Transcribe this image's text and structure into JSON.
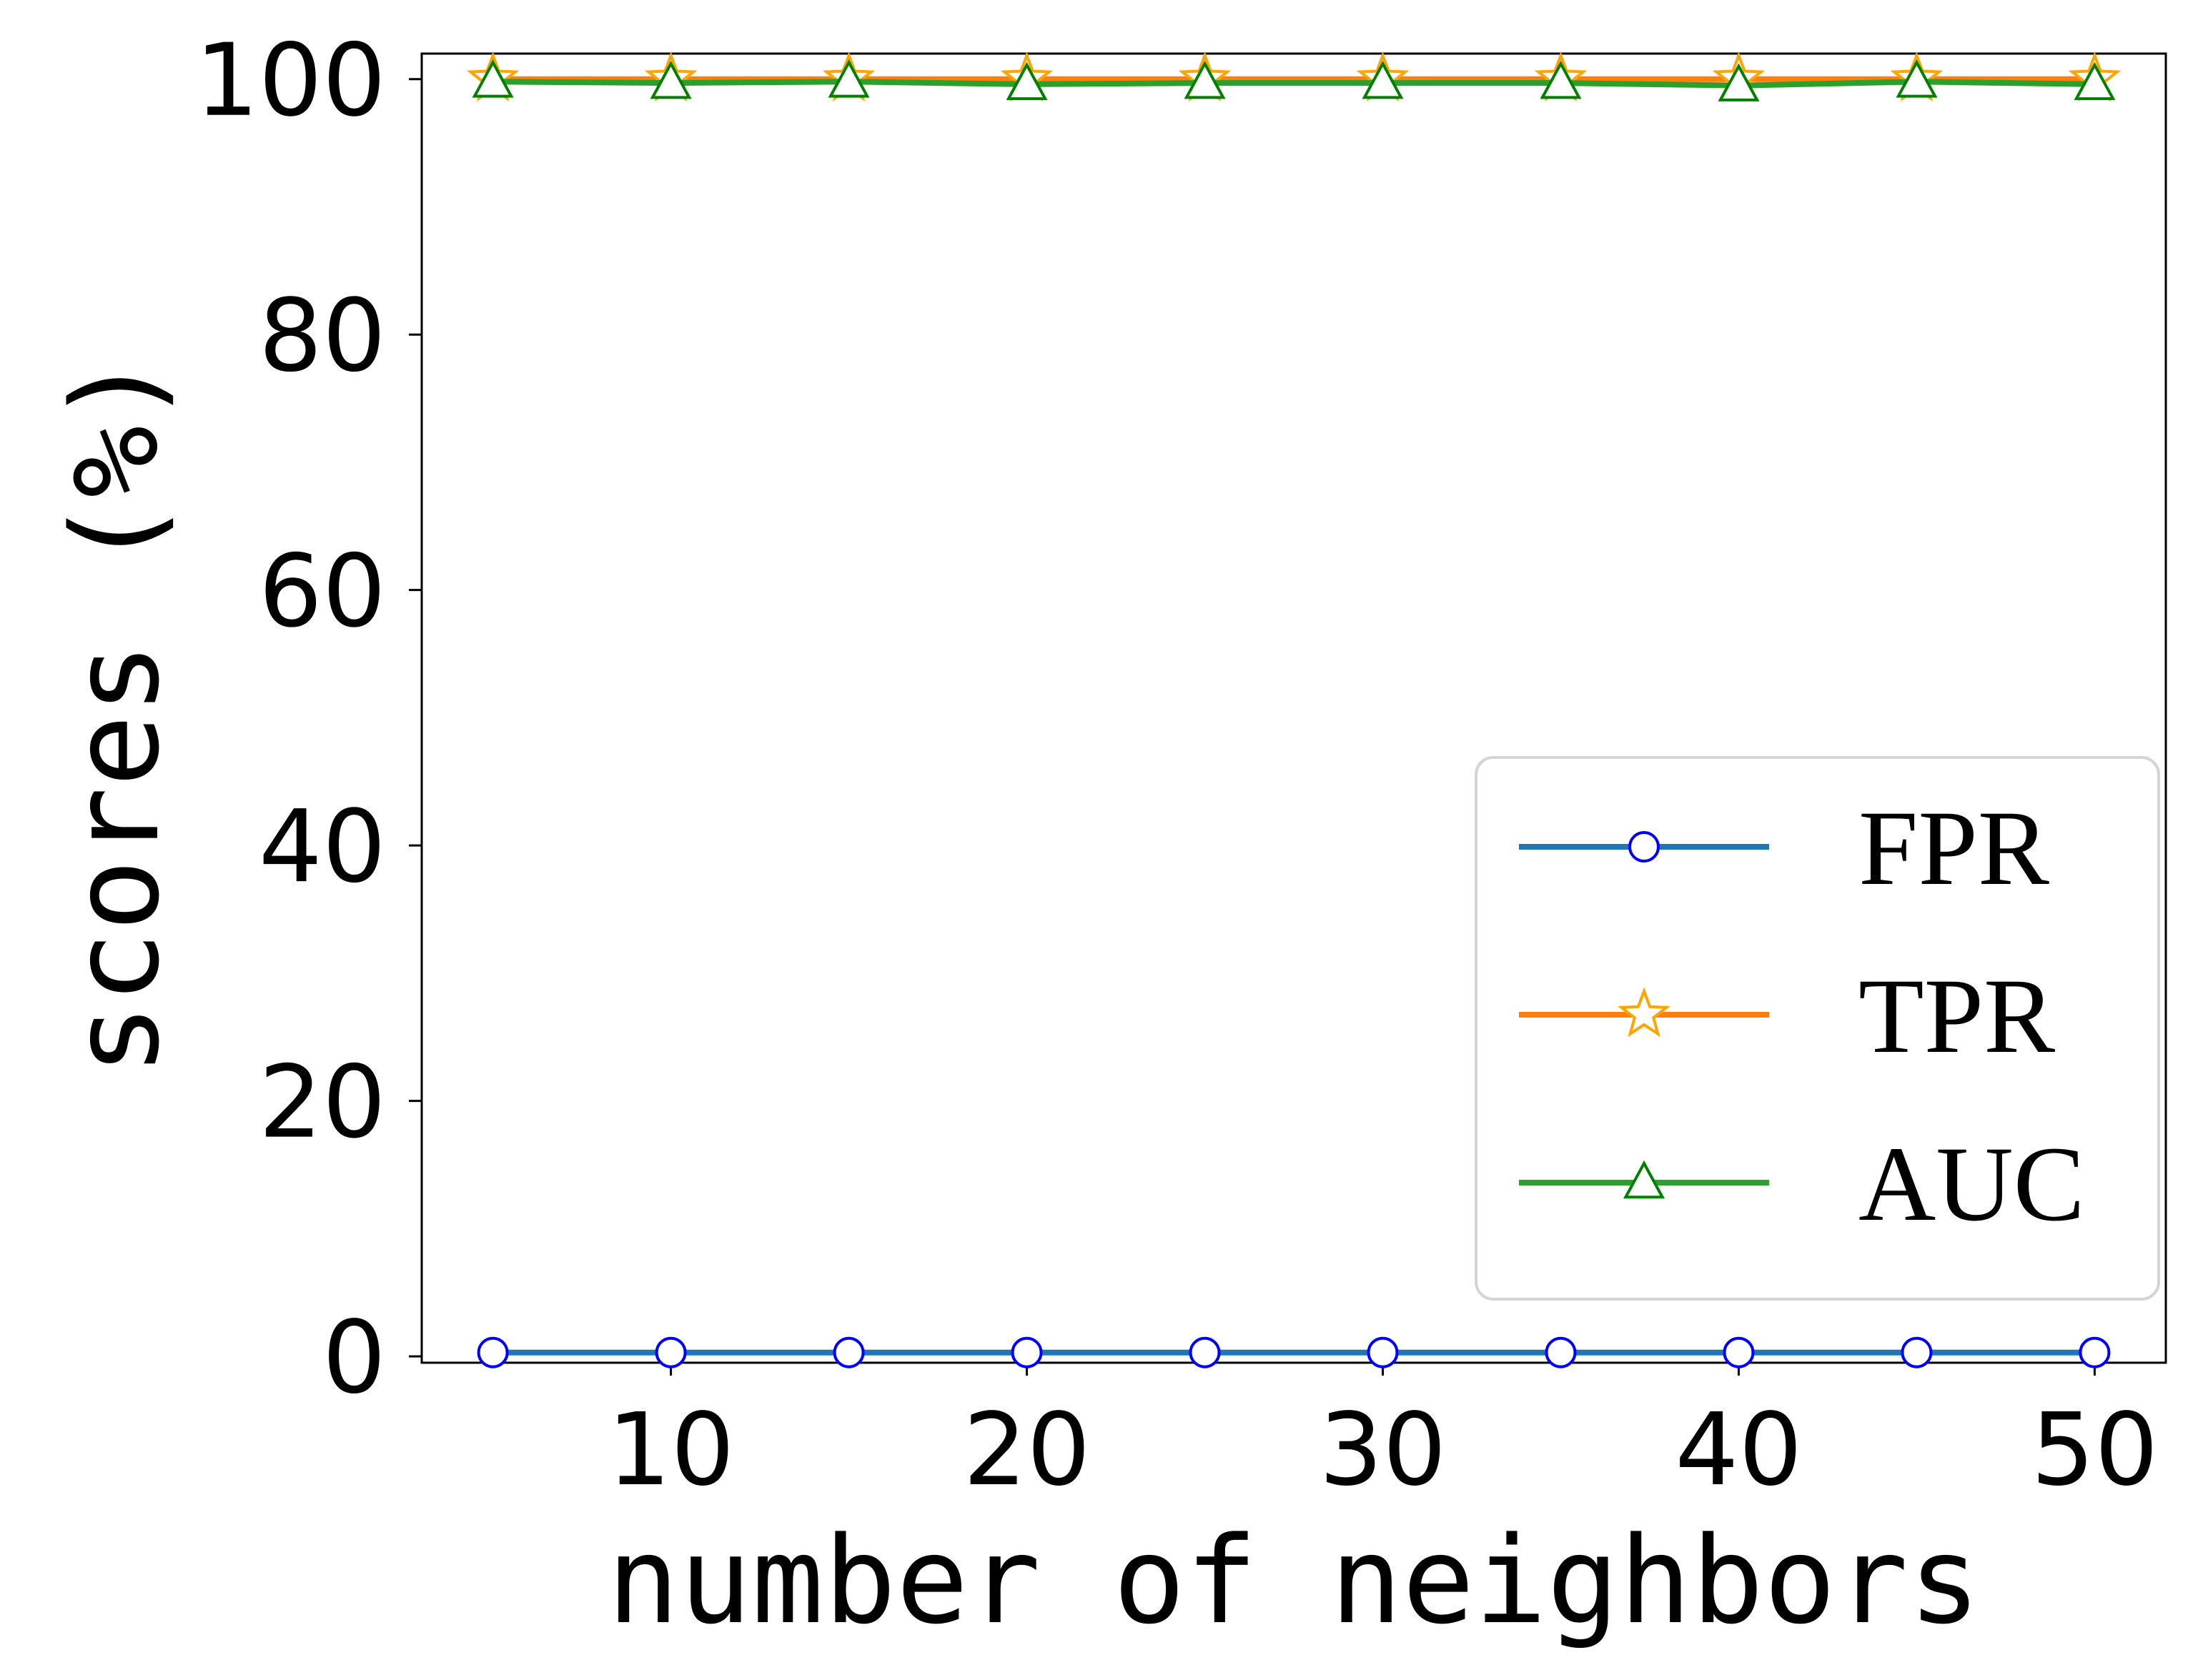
{
  "chart_data": {
    "type": "line",
    "xlabel": "number of neighbors",
    "ylabel": "scores (%)",
    "x": [
      5,
      10,
      15,
      20,
      25,
      30,
      35,
      40,
      45,
      50
    ],
    "xticks": [
      10,
      20,
      30,
      40,
      50
    ],
    "yticks": [
      0,
      20,
      40,
      60,
      80,
      100
    ],
    "xlim": [
      3,
      52
    ],
    "ylim": [
      -0.5,
      102
    ],
    "grid": false,
    "legend_position": "lower-right",
    "series": [
      {
        "name": "FPR",
        "values": [
          0.3,
          0.3,
          0.3,
          0.3,
          0.3,
          0.3,
          0.3,
          0.3,
          0.3,
          0.3
        ],
        "line_color": "#1f77b4",
        "marker": "circle",
        "marker_edge_color": "#0000ff",
        "marker_face_color": "#ffffff"
      },
      {
        "name": "TPR",
        "values": [
          100,
          100,
          100,
          100,
          100,
          100,
          100,
          100,
          100,
          100
        ],
        "line_color": "#ff7f0e",
        "marker": "star",
        "marker_edge_color": "#ffa500",
        "marker_face_color": "#ffffff"
      },
      {
        "name": "AUC",
        "values": [
          99.8,
          99.7,
          99.8,
          99.6,
          99.7,
          99.7,
          99.7,
          99.5,
          99.8,
          99.6
        ],
        "line_color": "#2ca02c",
        "marker": "triangle",
        "marker_edge_color": "#008000",
        "marker_face_color": "#ffffff"
      }
    ]
  }
}
